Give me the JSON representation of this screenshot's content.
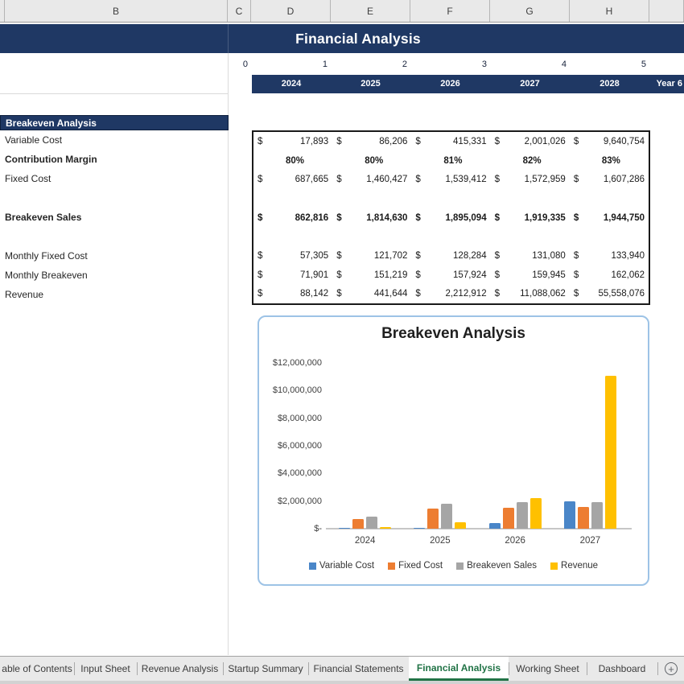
{
  "header": {
    "title": "Financial Analysis"
  },
  "sheet": {
    "column_letters": [
      "B",
      "C",
      "D",
      "E",
      "F",
      "G",
      "H"
    ],
    "index_labels": [
      "0",
      "1",
      "2",
      "3",
      "4",
      "5"
    ],
    "year_headers": [
      "2024",
      "2025",
      "2026",
      "2027",
      "2028",
      "Year 6"
    ],
    "section_header": "Breakeven Analysis"
  },
  "table": {
    "rows": [
      {
        "label": "Variable Cost",
        "type": "currency",
        "bold": false,
        "values": [
          "17,893",
          "86,206",
          "415,331",
          "2,001,026",
          "9,640,754"
        ]
      },
      {
        "label": "Contribution Margin",
        "type": "percent",
        "bold": true,
        "values": [
          "80%",
          "80%",
          "81%",
          "82%",
          "83%"
        ]
      },
      {
        "label": "Fixed Cost",
        "type": "currency",
        "bold": false,
        "values": [
          "687,665",
          "1,460,427",
          "1,539,412",
          "1,572,959",
          "1,607,286"
        ]
      },
      {
        "label": "",
        "type": "blank",
        "bold": false,
        "values": [
          "",
          "",
          "",
          "",
          ""
        ]
      },
      {
        "label": "Breakeven Sales",
        "type": "currency",
        "bold": true,
        "values": [
          "862,816",
          "1,814,630",
          "1,895,094",
          "1,919,335",
          "1,944,750"
        ]
      },
      {
        "label": "",
        "type": "blank",
        "bold": false,
        "values": [
          "",
          "",
          "",
          "",
          ""
        ]
      },
      {
        "label": "Monthly Fixed Cost",
        "type": "currency",
        "bold": false,
        "values": [
          "57,305",
          "121,702",
          "128,284",
          "131,080",
          "133,940"
        ]
      },
      {
        "label": "Monthly Breakeven",
        "type": "currency",
        "bold": false,
        "values": [
          "71,901",
          "151,219",
          "157,924",
          "159,945",
          "162,062"
        ]
      },
      {
        "label": "Revenue",
        "type": "currency",
        "bold": false,
        "values": [
          "88,142",
          "441,644",
          "2,212,912",
          "11,088,062",
          "55,558,076"
        ]
      }
    ],
    "currency_symbol": "$"
  },
  "chart_data": {
    "type": "bar",
    "title": "Breakeven Analysis",
    "categories": [
      "2024",
      "2025",
      "2026",
      "2027"
    ],
    "series": [
      {
        "name": "Variable Cost",
        "color": "#4A86C8",
        "values": [
          17893,
          86206,
          415331,
          2001026
        ]
      },
      {
        "name": "Fixed Cost",
        "color": "#ED7D31",
        "values": [
          687665,
          1460427,
          1539412,
          1572959
        ]
      },
      {
        "name": "Breakeven Sales",
        "color": "#A5A5A5",
        "values": [
          862816,
          1814630,
          1895094,
          1919335
        ]
      },
      {
        "name": "Revenue",
        "color": "#FFC000",
        "values": [
          88142,
          441644,
          2212912,
          11088062
        ]
      }
    ],
    "y_ticks": [
      "$12,000,000",
      "$10,000,000",
      "$8,000,000",
      "$6,000,000",
      "$4,000,000",
      "$2,000,000",
      "$-"
    ],
    "ylim": [
      0,
      12000000
    ],
    "grid": false,
    "legend_position": "bottom"
  },
  "tabs": {
    "items": [
      "able of Contents",
      "Input Sheet",
      "Revenue Analysis",
      "Startup Summary",
      "Financial Statements",
      "Financial Analysis",
      "Working Sheet",
      "Dashboard"
    ],
    "active": "Financial Analysis",
    "add_sheet_icon": "+"
  },
  "colors": {
    "navy": "#1F3864",
    "chart_border": "#9DC3E6",
    "active_tab_green": "#217346"
  }
}
